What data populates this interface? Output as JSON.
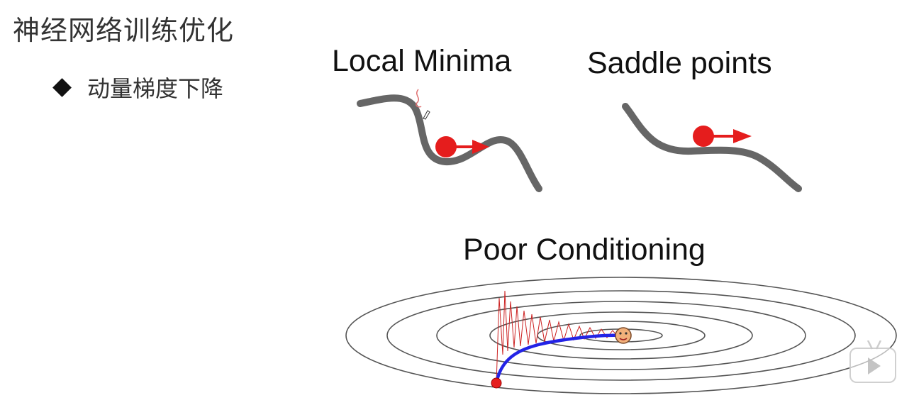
{
  "slide": {
    "title": "神经网络训练优化",
    "bullet": "动量梯度下降"
  },
  "panels": {
    "local_minima": "Local Minima",
    "saddle_points": "Saddle points",
    "poor_conditioning": "Poor Conditioning"
  },
  "colors": {
    "curve": "#666666",
    "ball": "#e51d1d",
    "arrow": "#e51d1d",
    "contour": "#555555",
    "zigzag": "#cc2222",
    "momentum_path": "#2323e6",
    "target": "#f2b07a"
  },
  "icons": {
    "bullet": "diamond-bullet-icon",
    "player": "play-button-icon"
  }
}
